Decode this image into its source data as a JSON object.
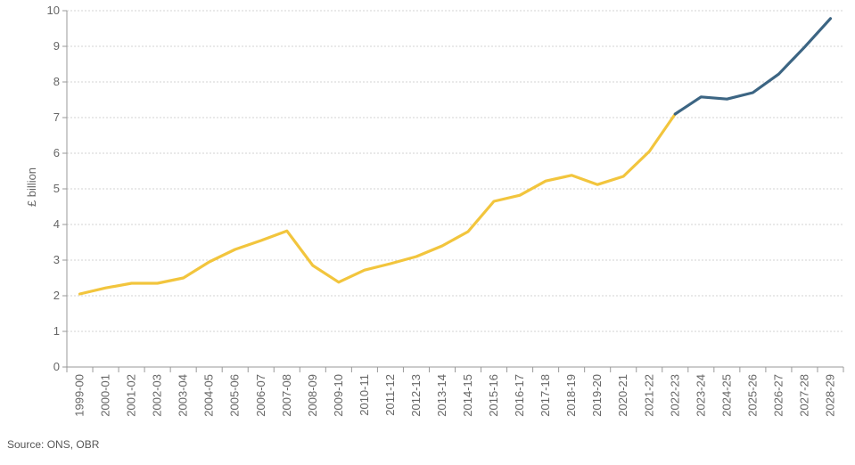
{
  "chart_data": {
    "type": "line",
    "ylabel": "£ billion",
    "ylim": [
      0,
      10
    ],
    "yticks": [
      0,
      1,
      2,
      3,
      4,
      5,
      6,
      7,
      8,
      9,
      10
    ],
    "grid": true,
    "categories": [
      "1999-00",
      "2000-01",
      "2001-02",
      "2002-03",
      "2003-04",
      "2004-05",
      "2005-06",
      "2006-07",
      "2007-08",
      "2008-09",
      "2009-10",
      "2010-11",
      "2011-12",
      "2012-13",
      "2013-14",
      "2014-15",
      "2015-16",
      "2016-17",
      "2017-18",
      "2018-19",
      "2019-20",
      "2020-21",
      "2021-22",
      "2022-23",
      "2023-24",
      "2024-25",
      "2025-26",
      "2026-27",
      "2027-28",
      "2028-29"
    ],
    "series": [
      {
        "color": "#F2C53D",
        "values": [
          2.05,
          2.22,
          2.35,
          2.35,
          2.5,
          2.95,
          3.3,
          3.55,
          3.82,
          2.85,
          2.38,
          2.72,
          2.9,
          3.1,
          3.4,
          3.8,
          4.65,
          4.82,
          5.22,
          5.38,
          5.12,
          5.35,
          6.05,
          7.1,
          null,
          null,
          null,
          null,
          null,
          null
        ]
      },
      {
        "color": "#3C6583",
        "values": [
          null,
          null,
          null,
          null,
          null,
          null,
          null,
          null,
          null,
          null,
          null,
          null,
          null,
          null,
          null,
          null,
          null,
          null,
          null,
          null,
          null,
          null,
          null,
          7.1,
          7.58,
          7.52,
          7.7,
          8.22,
          8.98,
          9.78
        ]
      }
    ]
  },
  "source": "Source: ONS, OBR"
}
